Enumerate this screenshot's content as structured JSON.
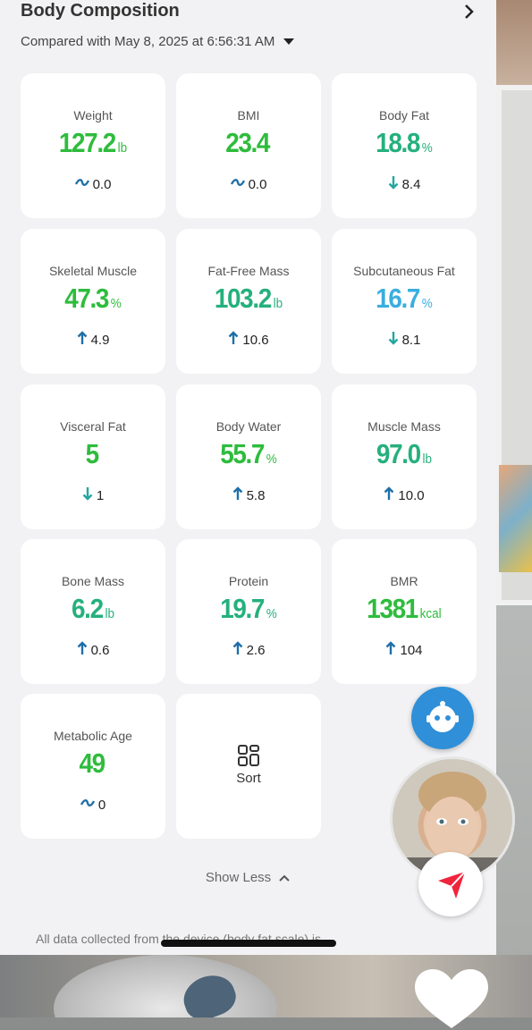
{
  "header": {
    "title": "Body Composition",
    "comparison": "Compared with May 8, 2025 at 6:56:31 AM"
  },
  "metrics": [
    {
      "label": "Weight",
      "value": "127.2",
      "unit": "lb",
      "change_icon": "tilde-icon",
      "change": "0.0",
      "color": "#2ebc3c"
    },
    {
      "label": "BMI",
      "value": "23.4",
      "unit": "",
      "change_icon": "tilde-icon",
      "change": "0.0",
      "color": "#2ebc3c"
    },
    {
      "label": "Body Fat",
      "value": "18.8",
      "unit": "%",
      "change_icon": "arrow-down-icon",
      "change": "8.4",
      "color": "#25b07d"
    },
    {
      "label": "Skeletal Muscle",
      "value": "47.3",
      "unit": "%",
      "change_icon": "arrow-up-icon",
      "change": "4.9",
      "color": "#2ebc3c"
    },
    {
      "label": "Fat-Free Mass",
      "value": "103.2",
      "unit": "lb",
      "change_icon": "arrow-up-icon",
      "change": "10.6",
      "color": "#25b07d"
    },
    {
      "label": "Subcutaneous Fat",
      "value": "16.7",
      "unit": "%",
      "change_icon": "arrow-down-icon",
      "change": "8.1",
      "color": "#3aaee0"
    },
    {
      "label": "Visceral Fat",
      "value": "5",
      "unit": "",
      "change_icon": "arrow-down-icon",
      "change": "1",
      "color": "#2ebc3c"
    },
    {
      "label": "Body Water",
      "value": "55.7",
      "unit": "%",
      "change_icon": "arrow-up-icon",
      "change": "5.8",
      "color": "#2ebc3c"
    },
    {
      "label": "Muscle Mass",
      "value": "97.0",
      "unit": "lb",
      "change_icon": "arrow-up-icon",
      "change": "10.0",
      "color": "#25b07d"
    },
    {
      "label": "Bone Mass",
      "value": "6.2",
      "unit": "lb",
      "change_icon": "arrow-up-icon",
      "change": "0.6",
      "color": "#25b07d"
    },
    {
      "label": "Protein",
      "value": "19.7",
      "unit": "%",
      "change_icon": "arrow-up-icon",
      "change": "2.6",
      "color": "#25b07d"
    },
    {
      "label": "BMR",
      "value": "1381",
      "unit": "kcal",
      "change_icon": "arrow-up-icon",
      "change": "104",
      "color": "#2ebc3c"
    },
    {
      "label": "Metabolic Age",
      "value": "49",
      "unit": "",
      "change_icon": "tilde-icon",
      "change": "0",
      "color": "#2ebc3c"
    }
  ],
  "sort": {
    "label": "Sort"
  },
  "show_less": "Show Less",
  "footer": "All data collected from the device (body fat scale) is",
  "colors": {
    "green": "#2ebc3c",
    "teal": "#25b07d",
    "blue": "#3aaee0",
    "up_arrow": "#1f6fa8",
    "down_arrow": "#25a6a0",
    "tilde": "#1f6fa8"
  }
}
